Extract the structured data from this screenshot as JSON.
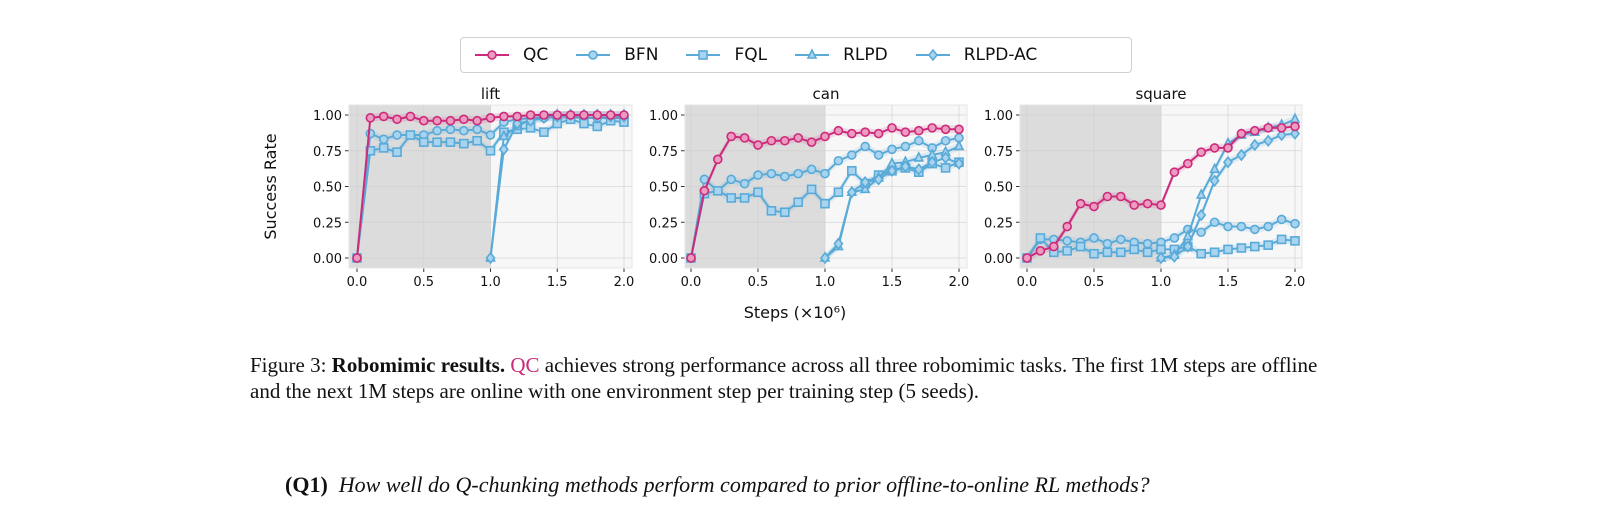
{
  "legend": [
    {
      "name": "QC",
      "marker": "circle",
      "color": "#cc2a7a"
    },
    {
      "name": "BFN",
      "marker": "circle",
      "color": "#5aaad8"
    },
    {
      "name": "FQL",
      "marker": "square",
      "color": "#5aaad8"
    },
    {
      "name": "RLPD",
      "marker": "triangle",
      "color": "#5aaad8"
    },
    {
      "name": "RLPD-AC",
      "marker": "diamond",
      "color": "#5aaad8"
    }
  ],
  "colors": {
    "qc": "#cc2a7a",
    "baseline": "#5aaad8",
    "offline_region": "#dcdcdc",
    "online_region": "#f7f7f7"
  },
  "chart_data": [
    {
      "type": "line",
      "title": "lift",
      "ylabel": "Success Rate",
      "xlabel": "Steps (×10⁶)",
      "xlim": [
        0,
        2
      ],
      "ylim": [
        0,
        1
      ],
      "xticks": [
        "0.0",
        "0.5",
        "1.0",
        "1.5",
        "2.0"
      ],
      "yticks": [
        "0.00",
        "0.25",
        "0.50",
        "0.75",
        "1.00"
      ],
      "grid": true,
      "offline_region": [
        0,
        1
      ],
      "series": [
        {
          "name": "QC",
          "x_start": 0,
          "values": [
            0,
            0.98,
            0.99,
            0.97,
            0.99,
            0.96,
            0.96,
            0.96,
            0.97,
            0.96,
            0.98,
            0.99,
            0.99,
            1,
            1,
            1,
            1,
            1,
            1,
            1,
            1
          ]
        },
        {
          "name": "BFN",
          "x_start": 0,
          "values": [
            0,
            0.87,
            0.83,
            0.86,
            0.86,
            0.86,
            0.89,
            0.9,
            0.89,
            0.9,
            0.86,
            0.95,
            0.97,
            0.98,
            0.98,
            0.99,
            0.99,
            0.98,
            0.98,
            0.98,
            0.98
          ]
        },
        {
          "name": "FQL",
          "x_start": 0,
          "values": [
            0,
            0.75,
            0.77,
            0.74,
            0.86,
            0.81,
            0.81,
            0.81,
            0.8,
            0.82,
            0.75,
            0.88,
            0.9,
            0.91,
            0.88,
            0.94,
            0.97,
            0.94,
            0.92,
            0.96,
            0.95
          ]
        },
        {
          "name": "RLPD",
          "x_start": 1,
          "values": [
            0,
            0.85,
            0.92,
            0.97,
            0.99,
            1,
            1,
            1,
            1,
            1,
            1
          ]
        },
        {
          "name": "RLPD-AC",
          "x_start": 1,
          "values": [
            0,
            0.76,
            0.94,
            0.96,
            0.98,
            0.99,
            1,
            1,
            1,
            0.99,
            0.99
          ]
        }
      ]
    },
    {
      "type": "line",
      "title": "can",
      "xlim": [
        0,
        2
      ],
      "ylim": [
        0,
        1
      ],
      "xticks": [
        "0.0",
        "0.5",
        "1.0",
        "1.5",
        "2.0"
      ],
      "yticks": [
        "0.00",
        "0.25",
        "0.50",
        "0.75",
        "1.00"
      ],
      "grid": true,
      "offline_region": [
        0,
        1
      ],
      "series": [
        {
          "name": "QC",
          "x_start": 0,
          "values": [
            0,
            0.47,
            0.69,
            0.85,
            0.84,
            0.79,
            0.82,
            0.82,
            0.84,
            0.81,
            0.85,
            0.89,
            0.87,
            0.88,
            0.87,
            0.91,
            0.88,
            0.89,
            0.91,
            0.9,
            0.9
          ]
        },
        {
          "name": "BFN",
          "x_start": 0,
          "values": [
            0,
            0.55,
            0.47,
            0.55,
            0.52,
            0.58,
            0.59,
            0.57,
            0.59,
            0.62,
            0.59,
            0.68,
            0.72,
            0.78,
            0.72,
            0.76,
            0.78,
            0.82,
            0.77,
            0.82,
            0.84
          ]
        },
        {
          "name": "FQL",
          "x_start": 0,
          "values": [
            0,
            0.45,
            0.47,
            0.42,
            0.42,
            0.46,
            0.33,
            0.32,
            0.39,
            0.48,
            0.38,
            0.46,
            0.61,
            0.52,
            0.58,
            0.61,
            0.63,
            0.6,
            0.66,
            0.63,
            0.67
          ]
        },
        {
          "name": "RLPD",
          "x_start": 1,
          "values": [
            0,
            0.08,
            0.46,
            0.48,
            0.56,
            0.66,
            0.67,
            0.7,
            0.72,
            0.74,
            0.78
          ]
        },
        {
          "name": "RLPD-AC",
          "x_start": 1,
          "values": [
            0,
            0.1,
            0.46,
            0.53,
            0.55,
            0.61,
            0.64,
            0.62,
            0.67,
            0.7,
            0.66
          ]
        }
      ]
    },
    {
      "type": "line",
      "title": "square",
      "xlim": [
        0,
        2
      ],
      "ylim": [
        0,
        1
      ],
      "xticks": [
        "0.0",
        "0.5",
        "1.0",
        "1.5",
        "2.0"
      ],
      "yticks": [
        "0.00",
        "0.25",
        "0.50",
        "0.75",
        "1.00"
      ],
      "grid": true,
      "offline_region": [
        0,
        1
      ],
      "series": [
        {
          "name": "QC",
          "x_start": 0,
          "values": [
            0,
            0.05,
            0.08,
            0.22,
            0.38,
            0.36,
            0.43,
            0.43,
            0.37,
            0.38,
            0.37,
            0.6,
            0.66,
            0.74,
            0.77,
            0.77,
            0.87,
            0.89,
            0.91,
            0.91,
            0.92
          ]
        },
        {
          "name": "BFN",
          "x_start": 0,
          "values": [
            0,
            0.13,
            0.13,
            0.12,
            0.11,
            0.14,
            0.1,
            0.13,
            0.11,
            0.1,
            0.11,
            0.14,
            0.2,
            0.18,
            0.25,
            0.22,
            0.22,
            0.2,
            0.22,
            0.27,
            0.24
          ]
        },
        {
          "name": "FQL",
          "x_start": 0,
          "values": [
            0,
            0.14,
            0.04,
            0.05,
            0.08,
            0.03,
            0.04,
            0.04,
            0.06,
            0.04,
            0.06,
            0.06,
            0.08,
            0.03,
            0.04,
            0.06,
            0.07,
            0.08,
            0.09,
            0.13,
            0.12
          ]
        },
        {
          "name": "RLPD",
          "x_start": 1,
          "values": [
            0,
            0.02,
            0.15,
            0.44,
            0.62,
            0.8,
            0.86,
            0.88,
            0.91,
            0.93,
            0.97
          ]
        },
        {
          "name": "RLPD-AC",
          "x_start": 1,
          "values": [
            0,
            0.01,
            0.08,
            0.3,
            0.54,
            0.67,
            0.72,
            0.79,
            0.82,
            0.86,
            0.87
          ]
        }
      ]
    }
  ],
  "caption": {
    "label": "Figure 3:",
    "bold": "Robomimic results.",
    "qc": "QC",
    "text": "achieves strong performance across all three robomimic tasks. The first 1M steps are offline and the next 1M steps are online with one environment step per training step (5 seeds)."
  },
  "question": {
    "label": "(Q1)",
    "text": "How well do Q-chunking methods perform compared to prior offline-to-online RL methods?"
  }
}
